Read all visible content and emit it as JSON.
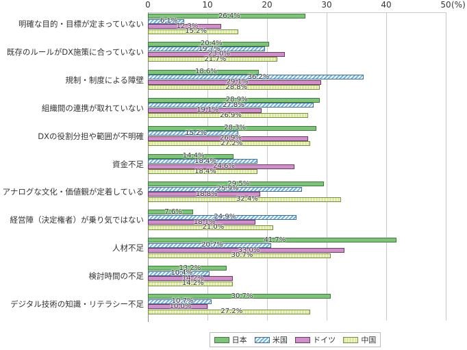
{
  "chart_data": {
    "type": "bar",
    "orientation": "horizontal",
    "title": "",
    "xlabel": "(%)",
    "ylabel": "",
    "xlim": [
      0,
      50
    ],
    "x_ticks": [
      "0",
      "10",
      "20",
      "30",
      "40",
      "50"
    ],
    "unit_label": "(%)",
    "grid": true,
    "legend_position": "bottom",
    "categories": [
      "明確な目的・目標が定まっていない",
      "既存のルールがDX施策に合っていない",
      "規制・制度による障壁",
      "組織間の連携が取れていない",
      "DXの役割分担や範囲が不明確",
      "資金不足",
      "アナログな文化・価値観が定着している",
      "経営陣（決定権者）が乗り気ではない",
      "人材不足",
      "検討時間の不足",
      "デジタル技術の知識・リテラシー不足"
    ],
    "series": [
      {
        "name": "日本",
        "color": "#7dc47a",
        "pattern": "solid",
        "values": [
          26.4,
          20.4,
          18.6,
          28.9,
          28.3,
          14.4,
          29.5,
          7.6,
          41.7,
          13.2,
          30.7
        ]
      },
      {
        "name": "米国",
        "color": "#6fb0e0",
        "pattern": "diagonal-hatch",
        "values": [
          6.1,
          19.7,
          36.2,
          27.8,
          15.2,
          18.4,
          25.9,
          24.9,
          20.7,
          10.4,
          10.7
        ]
      },
      {
        "name": "ドイツ",
        "color": "#cf8fc9",
        "pattern": "solid",
        "values": [
          12.3,
          23.0,
          29.1,
          19.1,
          26.9,
          24.6,
          18.8,
          18.1,
          33.0,
          14.2,
          10.0
        ]
      },
      {
        "name": "中国",
        "color": "#d9ec9a",
        "pattern": "grid",
        "values": [
          15.2,
          21.7,
          28.8,
          26.9,
          27.2,
          18.4,
          32.4,
          21.0,
          30.7,
          14.2,
          27.2
        ]
      }
    ]
  }
}
